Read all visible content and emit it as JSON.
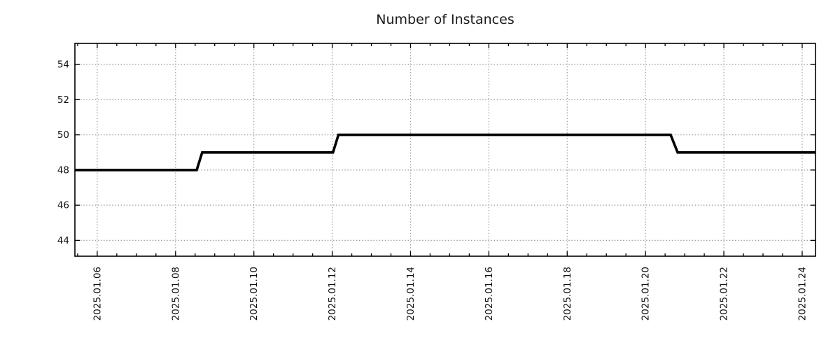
{
  "figure": {
    "title": "Number of Instances"
  },
  "chart_data": {
    "type": "line",
    "subtype": "step",
    "title": "Number of Instances",
    "xlabel": "",
    "ylabel": "",
    "legend": "none",
    "grid": {
      "show": true,
      "style": "dotted",
      "color": "#9e9e9e"
    },
    "x_axis": {
      "epoch_date": "2025-01-06",
      "tick_labels": [
        "2025.01.06",
        "2025.01.08",
        "2025.01.10",
        "2025.01.12",
        "2025.01.14",
        "2025.01.16",
        "2025.01.18",
        "2025.01.20",
        "2025.01.22",
        "2025.01.24"
      ],
      "tick_days": [
        0,
        2,
        4,
        6,
        8,
        10,
        12,
        14,
        16,
        18
      ],
      "minor_tick_step_days": 0.5,
      "xlim_days": [
        -0.57,
        18.34
      ]
    },
    "y_axis": {
      "ticks": [
        44,
        46,
        48,
        50,
        52,
        54
      ],
      "ylim": [
        43.1,
        55.2
      ]
    },
    "series": [
      {
        "name": "Number of Instances",
        "color": "#000000",
        "line_width": 3.6,
        "points_days": [
          [
            -0.57,
            48
          ],
          [
            2.54,
            48
          ],
          [
            2.68,
            49
          ],
          [
            6.02,
            49
          ],
          [
            6.16,
            50
          ],
          [
            14.64,
            50
          ],
          [
            14.82,
            49
          ],
          [
            18.34,
            49
          ]
        ],
        "points_readable": [
          {
            "date": "2025-01-05 10:00",
            "value": 48
          },
          {
            "date": "2025-01-08 13:00",
            "value": 48
          },
          {
            "date": "2025-01-08 16:00",
            "value": 49
          },
          {
            "date": "2025-01-12 00:30",
            "value": 49
          },
          {
            "date": "2025-01-12 04:00",
            "value": 50
          },
          {
            "date": "2025-01-20 15:30",
            "value": 50
          },
          {
            "date": "2025-01-20 19:30",
            "value": 49
          },
          {
            "date": "2025-01-24 08:00",
            "value": 49
          }
        ]
      }
    ]
  }
}
